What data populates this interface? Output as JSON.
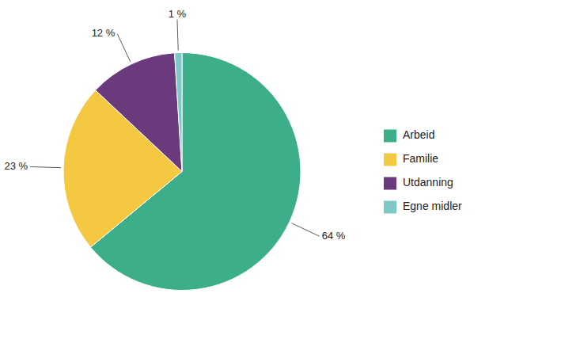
{
  "chart_data": {
    "type": "pie",
    "categories": [
      "Arbeid",
      "Familie",
      "Utdanning",
      "Egne midler"
    ],
    "values": [
      64,
      23,
      12,
      1
    ],
    "value_labels": [
      "64 %",
      "23 %",
      "12 %",
      "1 %"
    ],
    "colors": [
      "#3DAE8A",
      "#F5C842",
      "#6B3A7D",
      "#7EC8C8"
    ],
    "data_labels": true,
    "legend": "right"
  }
}
